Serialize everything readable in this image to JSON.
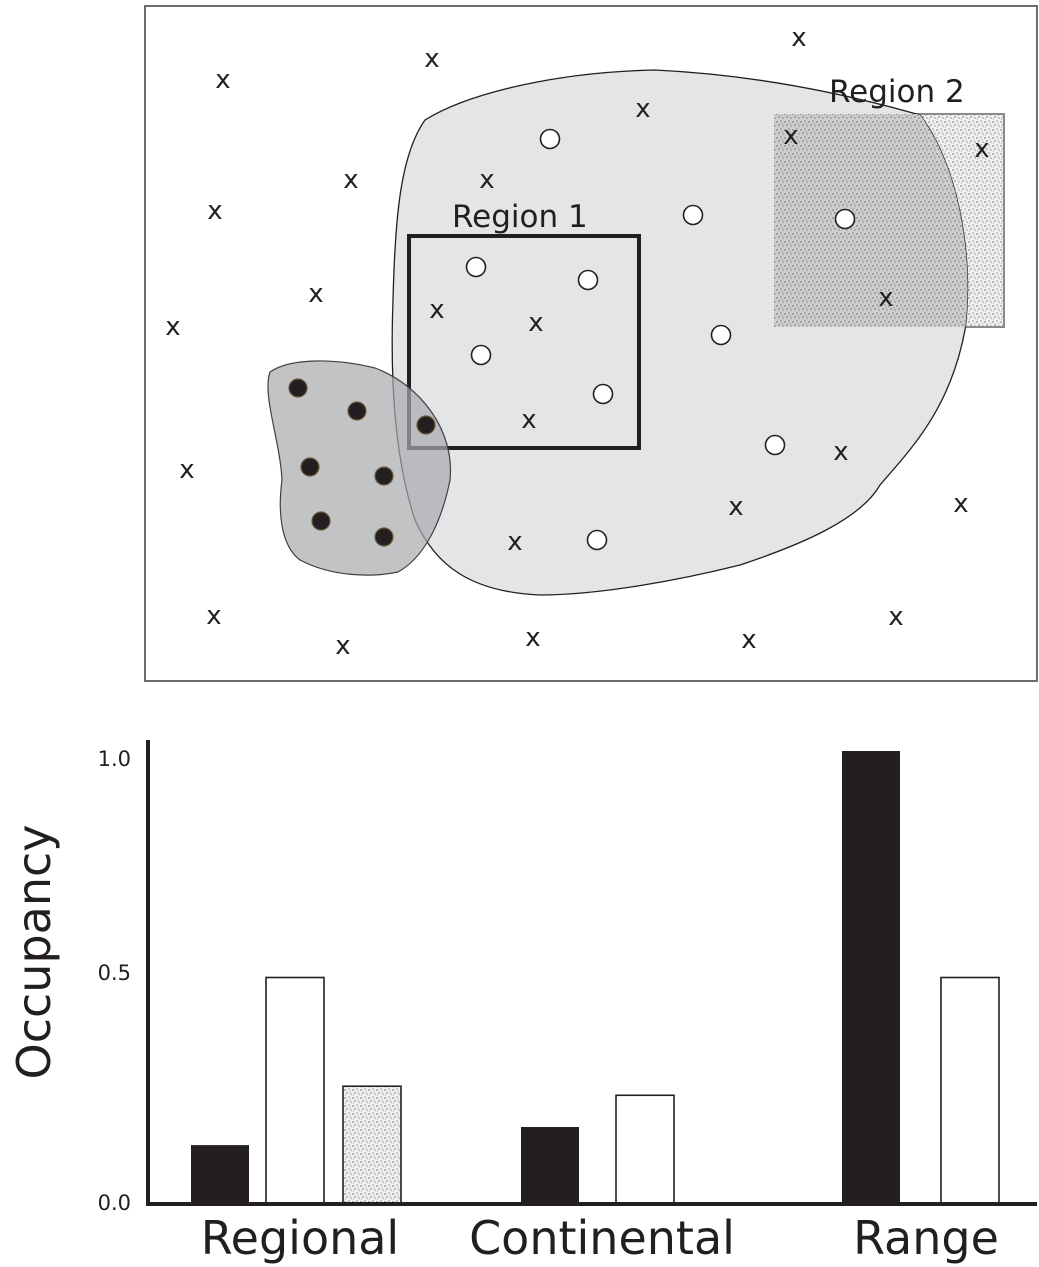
{
  "map": {
    "region1_label": "Region 1",
    "region2_label": "Region 2",
    "absence_marker": "x"
  },
  "chart_data": {
    "type": "bar",
    "categories": [
      "Regional",
      "Continental",
      "Range"
    ],
    "series": [
      {
        "key": "black",
        "color": "#231f20",
        "values": [
          0.13,
          0.17,
          1.0
        ]
      },
      {
        "key": "white",
        "color": "#ffffff",
        "values": [
          0.5,
          0.24,
          0.5
        ]
      },
      {
        "key": "stipple",
        "color": "#e4e4e4",
        "values": [
          0.26,
          null,
          null
        ]
      }
    ],
    "ylabel": "Occupancy",
    "xlabel": "",
    "yticks": [
      "0.0",
      "0.5",
      "1.0"
    ],
    "ylim": [
      0,
      1
    ],
    "grid": false
  }
}
